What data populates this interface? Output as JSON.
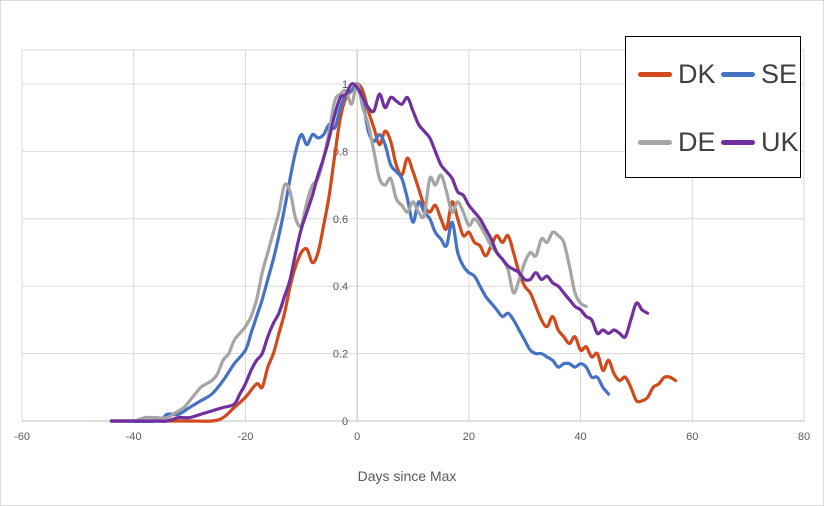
{
  "chart_data": {
    "type": "line",
    "title": "",
    "xlabel": "Days since Max",
    "ylabel": "",
    "xlim": [
      -60,
      80
    ],
    "ylim": [
      0,
      1
    ],
    "x_ticks": [
      -60,
      -40,
      -20,
      0,
      20,
      40,
      60,
      80
    ],
    "y_ticks": [
      0,
      0.2,
      0.4,
      0.6,
      0.8,
      1
    ],
    "x_tick_labels": [
      "-60",
      "-40",
      "-20",
      "0",
      "20",
      "40",
      "60",
      "80"
    ],
    "y_tick_labels": [
      "0",
      "0.2",
      "0.4",
      "0.6",
      "0.8",
      "1"
    ],
    "grid": true,
    "legend_position": "top-right",
    "series": [
      {
        "name": "DK",
        "color": "#d04a1c",
        "points": [
          [
            -44,
            0
          ],
          [
            -30,
            0
          ],
          [
            -26,
            0
          ],
          [
            -24,
            0.01
          ],
          [
            -22,
            0.04
          ],
          [
            -20,
            0.07
          ],
          [
            -18,
            0.11
          ],
          [
            -17,
            0.1
          ],
          [
            -16,
            0.16
          ],
          [
            -15,
            0.2
          ],
          [
            -14,
            0.26
          ],
          [
            -13,
            0.32
          ],
          [
            -12,
            0.4
          ],
          [
            -11,
            0.46
          ],
          [
            -10,
            0.5
          ],
          [
            -9,
            0.51
          ],
          [
            -8,
            0.47
          ],
          [
            -7,
            0.5
          ],
          [
            -6,
            0.58
          ],
          [
            -5,
            0.67
          ],
          [
            -4,
            0.79
          ],
          [
            -3,
            0.9
          ],
          [
            -2,
            0.96
          ],
          [
            -1,
            0.98
          ],
          [
            0,
            1
          ],
          [
            1,
            0.98
          ],
          [
            2,
            0.92
          ],
          [
            3,
            0.87
          ],
          [
            4,
            0.82
          ],
          [
            5,
            0.86
          ],
          [
            6,
            0.83
          ],
          [
            7,
            0.76
          ],
          [
            8,
            0.73
          ],
          [
            9,
            0.78
          ],
          [
            10,
            0.74
          ],
          [
            11,
            0.69
          ],
          [
            12,
            0.64
          ],
          [
            13,
            0.62
          ],
          [
            14,
            0.64
          ],
          [
            15,
            0.6
          ],
          [
            16,
            0.57
          ],
          [
            17,
            0.65
          ],
          [
            18,
            0.6
          ],
          [
            19,
            0.55
          ],
          [
            20,
            0.56
          ],
          [
            21,
            0.53
          ],
          [
            22,
            0.52
          ],
          [
            23,
            0.49
          ],
          [
            24,
            0.52
          ],
          [
            25,
            0.55
          ],
          [
            26,
            0.53
          ],
          [
            27,
            0.55
          ],
          [
            28,
            0.5
          ],
          [
            29,
            0.44
          ],
          [
            30,
            0.4
          ],
          [
            31,
            0.38
          ],
          [
            32,
            0.34
          ],
          [
            33,
            0.3
          ],
          [
            34,
            0.28
          ],
          [
            35,
            0.31
          ],
          [
            36,
            0.27
          ],
          [
            37,
            0.25
          ],
          [
            38,
            0.23
          ],
          [
            39,
            0.25
          ],
          [
            40,
            0.21
          ],
          [
            41,
            0.22
          ],
          [
            42,
            0.19
          ],
          [
            43,
            0.2
          ],
          [
            44,
            0.15
          ],
          [
            45,
            0.18
          ],
          [
            46,
            0.14
          ],
          [
            47,
            0.12
          ],
          [
            48,
            0.13
          ],
          [
            49,
            0.1
          ],
          [
            50,
            0.06
          ],
          [
            51,
            0.06
          ],
          [
            52,
            0.07
          ],
          [
            53,
            0.1
          ],
          [
            54,
            0.11
          ],
          [
            55,
            0.13
          ],
          [
            56,
            0.13
          ],
          [
            57,
            0.12
          ]
        ]
      },
      {
        "name": "SE",
        "color": "#4472c4",
        "points": [
          [
            -44,
            0
          ],
          [
            -36,
            0
          ],
          [
            -34,
            0.02
          ],
          [
            -32,
            0.02
          ],
          [
            -30,
            0.04
          ],
          [
            -28,
            0.06
          ],
          [
            -26,
            0.08
          ],
          [
            -24,
            0.12
          ],
          [
            -22,
            0.17
          ],
          [
            -20,
            0.21
          ],
          [
            -19,
            0.26
          ],
          [
            -18,
            0.31
          ],
          [
            -17,
            0.36
          ],
          [
            -16,
            0.42
          ],
          [
            -15,
            0.48
          ],
          [
            -14,
            0.55
          ],
          [
            -13,
            0.63
          ],
          [
            -12,
            0.72
          ],
          [
            -11,
            0.8
          ],
          [
            -10,
            0.85
          ],
          [
            -9,
            0.82
          ],
          [
            -8,
            0.85
          ],
          [
            -7,
            0.84
          ],
          [
            -6,
            0.85
          ],
          [
            -5,
            0.88
          ],
          [
            -4,
            0.87
          ],
          [
            -3,
            0.93
          ],
          [
            -2,
            0.97
          ],
          [
            -1,
            0.98
          ],
          [
            0,
            1
          ],
          [
            1,
            0.95
          ],
          [
            2,
            0.86
          ],
          [
            3,
            0.83
          ],
          [
            4,
            0.85
          ],
          [
            5,
            0.82
          ],
          [
            6,
            0.76
          ],
          [
            7,
            0.74
          ],
          [
            8,
            0.72
          ],
          [
            9,
            0.66
          ],
          [
            10,
            0.59
          ],
          [
            11,
            0.65
          ],
          [
            12,
            0.62
          ],
          [
            13,
            0.6
          ],
          [
            14,
            0.56
          ],
          [
            15,
            0.54
          ],
          [
            16,
            0.52
          ],
          [
            17,
            0.59
          ],
          [
            18,
            0.5
          ],
          [
            19,
            0.46
          ],
          [
            20,
            0.44
          ],
          [
            21,
            0.43
          ],
          [
            22,
            0.4
          ],
          [
            23,
            0.37
          ],
          [
            24,
            0.35
          ],
          [
            25,
            0.33
          ],
          [
            26,
            0.31
          ],
          [
            27,
            0.32
          ],
          [
            28,
            0.3
          ],
          [
            29,
            0.27
          ],
          [
            30,
            0.24
          ],
          [
            31,
            0.21
          ],
          [
            32,
            0.2
          ],
          [
            33,
            0.2
          ],
          [
            34,
            0.19
          ],
          [
            35,
            0.18
          ],
          [
            36,
            0.16
          ],
          [
            37,
            0.17
          ],
          [
            38,
            0.17
          ],
          [
            39,
            0.16
          ],
          [
            40,
            0.17
          ],
          [
            41,
            0.16
          ],
          [
            42,
            0.13
          ],
          [
            43,
            0.13
          ],
          [
            44,
            0.1
          ],
          [
            45,
            0.08
          ]
        ]
      },
      {
        "name": "DE",
        "color": "#a5a5a5",
        "points": [
          [
            -44,
            0
          ],
          [
            -40,
            0
          ],
          [
            -38,
            0.01
          ],
          [
            -36,
            0.01
          ],
          [
            -34,
            0.01
          ],
          [
            -32,
            0.03
          ],
          [
            -31,
            0.04
          ],
          [
            -30,
            0.06
          ],
          [
            -29,
            0.08
          ],
          [
            -28,
            0.1
          ],
          [
            -27,
            0.11
          ],
          [
            -26,
            0.12
          ],
          [
            -25,
            0.14
          ],
          [
            -24,
            0.18
          ],
          [
            -23,
            0.2
          ],
          [
            -22,
            0.24
          ],
          [
            -21,
            0.26
          ],
          [
            -20,
            0.28
          ],
          [
            -19,
            0.31
          ],
          [
            -18,
            0.36
          ],
          [
            -17,
            0.44
          ],
          [
            -16,
            0.5
          ],
          [
            -15,
            0.56
          ],
          [
            -14,
            0.62
          ],
          [
            -13,
            0.7
          ],
          [
            -12,
            0.68
          ],
          [
            -11,
            0.6
          ],
          [
            -10,
            0.58
          ],
          [
            -9,
            0.65
          ],
          [
            -8,
            0.7
          ],
          [
            -7,
            0.72
          ],
          [
            -6,
            0.78
          ],
          [
            -5,
            0.86
          ],
          [
            -4,
            0.95
          ],
          [
            -3,
            0.97
          ],
          [
            -2,
            0.98
          ],
          [
            -1,
            0.94
          ],
          [
            0,
            1
          ],
          [
            1,
            0.93
          ],
          [
            2,
            0.88
          ],
          [
            3,
            0.8
          ],
          [
            4,
            0.72
          ],
          [
            5,
            0.7
          ],
          [
            6,
            0.72
          ],
          [
            7,
            0.66
          ],
          [
            8,
            0.64
          ],
          [
            9,
            0.62
          ],
          [
            10,
            0.65
          ],
          [
            11,
            0.62
          ],
          [
            12,
            0.61
          ],
          [
            13,
            0.72
          ],
          [
            14,
            0.7
          ],
          [
            15,
            0.73
          ],
          [
            16,
            0.68
          ],
          [
            17,
            0.62
          ],
          [
            18,
            0.65
          ],
          [
            19,
            0.62
          ],
          [
            20,
            0.58
          ],
          [
            21,
            0.6
          ],
          [
            22,
            0.58
          ],
          [
            23,
            0.55
          ],
          [
            24,
            0.52
          ],
          [
            25,
            0.5
          ],
          [
            26,
            0.48
          ],
          [
            27,
            0.45
          ],
          [
            28,
            0.38
          ],
          [
            29,
            0.42
          ],
          [
            30,
            0.47
          ],
          [
            31,
            0.5
          ],
          [
            32,
            0.49
          ],
          [
            33,
            0.54
          ],
          [
            34,
            0.53
          ],
          [
            35,
            0.56
          ],
          [
            36,
            0.55
          ],
          [
            37,
            0.53
          ],
          [
            38,
            0.46
          ],
          [
            39,
            0.38
          ],
          [
            40,
            0.35
          ],
          [
            41,
            0.34
          ]
        ]
      },
      {
        "name": "UK",
        "color": "#7030a0",
        "points": [
          [
            -44,
            0
          ],
          [
            -40,
            0
          ],
          [
            -36,
            0
          ],
          [
            -34,
            0
          ],
          [
            -32,
            0.01
          ],
          [
            -30,
            0.01
          ],
          [
            -28,
            0.02
          ],
          [
            -26,
            0.03
          ],
          [
            -24,
            0.04
          ],
          [
            -22,
            0.05
          ],
          [
            -21,
            0.08
          ],
          [
            -20,
            0.11
          ],
          [
            -19,
            0.15
          ],
          [
            -18,
            0.18
          ],
          [
            -17,
            0.2
          ],
          [
            -16,
            0.25
          ],
          [
            -15,
            0.29
          ],
          [
            -14,
            0.32
          ],
          [
            -13,
            0.37
          ],
          [
            -12,
            0.42
          ],
          [
            -11,
            0.5
          ],
          [
            -10,
            0.57
          ],
          [
            -9,
            0.62
          ],
          [
            -8,
            0.67
          ],
          [
            -7,
            0.73
          ],
          [
            -6,
            0.78
          ],
          [
            -5,
            0.84
          ],
          [
            -4,
            0.91
          ],
          [
            -3,
            0.96
          ],
          [
            -2,
            0.97
          ],
          [
            -1,
            1
          ],
          [
            0,
            0.99
          ],
          [
            1,
            0.96
          ],
          [
            2,
            0.93
          ],
          [
            3,
            0.92
          ],
          [
            4,
            0.97
          ],
          [
            5,
            0.93
          ],
          [
            6,
            0.96
          ],
          [
            7,
            0.95
          ],
          [
            8,
            0.94
          ],
          [
            9,
            0.96
          ],
          [
            10,
            0.92
          ],
          [
            11,
            0.88
          ],
          [
            12,
            0.86
          ],
          [
            13,
            0.84
          ],
          [
            14,
            0.8
          ],
          [
            15,
            0.76
          ],
          [
            16,
            0.74
          ],
          [
            17,
            0.72
          ],
          [
            18,
            0.68
          ],
          [
            19,
            0.67
          ],
          [
            20,
            0.64
          ],
          [
            21,
            0.62
          ],
          [
            22,
            0.6
          ],
          [
            23,
            0.57
          ],
          [
            24,
            0.54
          ],
          [
            25,
            0.5
          ],
          [
            26,
            0.48
          ],
          [
            27,
            0.46
          ],
          [
            28,
            0.45
          ],
          [
            29,
            0.44
          ],
          [
            30,
            0.42
          ],
          [
            31,
            0.42
          ],
          [
            32,
            0.44
          ],
          [
            33,
            0.42
          ],
          [
            34,
            0.43
          ],
          [
            35,
            0.41
          ],
          [
            36,
            0.4
          ],
          [
            37,
            0.38
          ],
          [
            38,
            0.36
          ],
          [
            39,
            0.34
          ],
          [
            40,
            0.33
          ],
          [
            41,
            0.31
          ],
          [
            42,
            0.3
          ],
          [
            43,
            0.26
          ],
          [
            44,
            0.27
          ],
          [
            45,
            0.26
          ],
          [
            46,
            0.27
          ],
          [
            47,
            0.26
          ],
          [
            48,
            0.25
          ],
          [
            49,
            0.3
          ],
          [
            50,
            0.35
          ],
          [
            51,
            0.33
          ],
          [
            52,
            0.32
          ]
        ]
      }
    ]
  }
}
